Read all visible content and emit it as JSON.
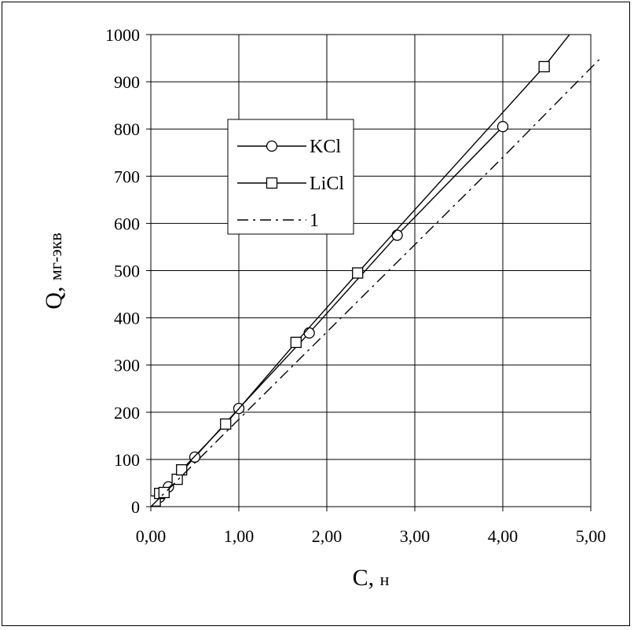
{
  "chart_data": {
    "type": "line",
    "title": "",
    "xlabel": "C,",
    "xlabel_unit": "н",
    "ylabel": "Q,",
    "ylabel_unit": "мг-экв",
    "xlim": [
      0,
      5
    ],
    "ylim": [
      0,
      1000
    ],
    "x_ticks": [
      0,
      1,
      2,
      3,
      4,
      5
    ],
    "x_tick_labels": [
      "0,00",
      "1,00",
      "2,00",
      "3,00",
      "4,00",
      "5,00"
    ],
    "y_ticks": [
      0,
      100,
      200,
      300,
      400,
      500,
      600,
      700,
      800,
      900,
      1000
    ],
    "y_tick_labels": [
      "0",
      "100",
      "200",
      "300",
      "400",
      "500",
      "600",
      "700",
      "800",
      "900",
      "1000"
    ],
    "grid": true,
    "legend_position": "upper-left-center",
    "series": [
      {
        "name": "KCl",
        "marker": "circle",
        "line": "solid",
        "color": "#000000",
        "x": [
          0.1,
          0.2,
          0.5,
          1.0,
          1.8,
          2.8,
          4.0
        ],
        "y": [
          20,
          42,
          105,
          208,
          368,
          575,
          805
        ]
      },
      {
        "name": "LiCl",
        "marker": "square",
        "line": "solid",
        "color": "#000000",
        "x": [
          0.05,
          0.1,
          0.15,
          0.3,
          0.35,
          0.85,
          1.65,
          2.35,
          4.47
        ],
        "y": [
          12,
          28,
          30,
          58,
          78,
          175,
          348,
          495,
          932
        ],
        "extend_to": [
          4.8,
          1010
        ]
      },
      {
        "name": "1",
        "marker": "none",
        "line": "dashdot",
        "color": "#000000",
        "x": [
          0,
          1,
          2,
          3,
          4,
          5.1
        ],
        "y": [
          0,
          185,
          370,
          555,
          740,
          948
        ]
      }
    ]
  }
}
